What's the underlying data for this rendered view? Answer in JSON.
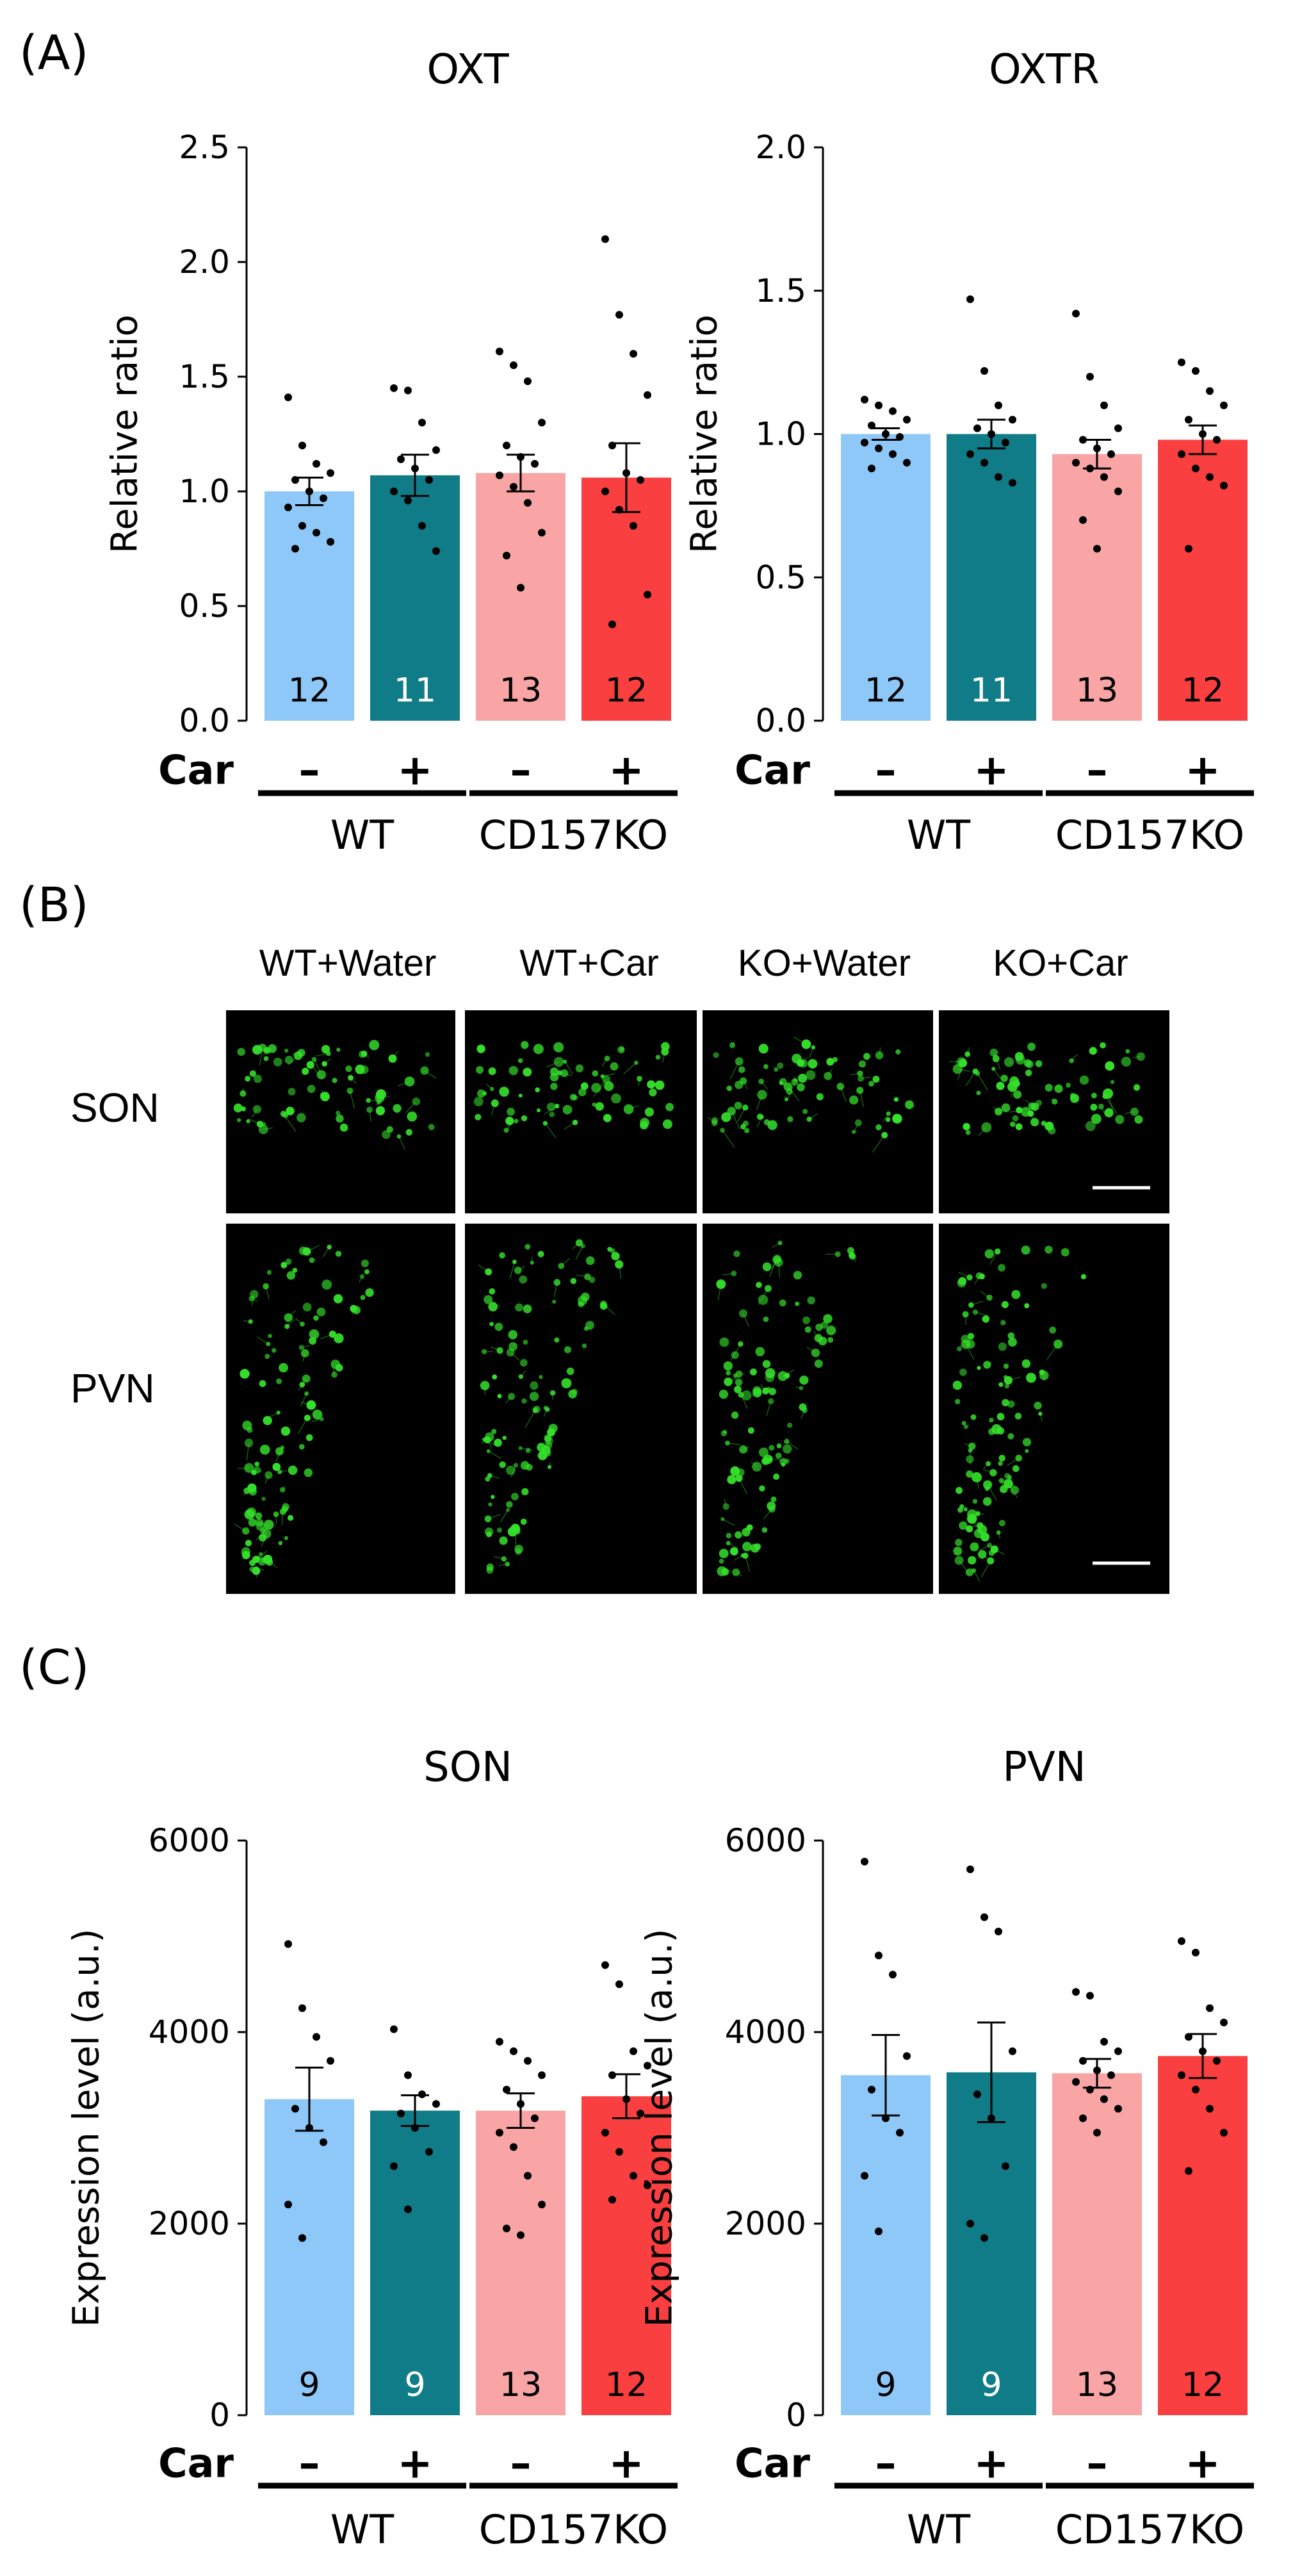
{
  "panels": {
    "a": {
      "label": "(A)"
    },
    "b": {
      "label": "(B)",
      "columns": [
        "WT+Water",
        "WT+Car",
        "KO+Water",
        "KO+Car"
      ],
      "rows": [
        "SON",
        "PVN"
      ]
    },
    "c": {
      "label": "(C)"
    }
  },
  "colors": {
    "wt_water": "#8EC8F8",
    "wt_car": "#0F7C88",
    "ko_water": "#F9A5A5",
    "ko_car": "#F93F3F",
    "micrograph_background": "#000000",
    "neuron_fluorescence": "#35E12B"
  },
  "chart_data": [
    {
      "type": "bar",
      "title": "OXT",
      "ylabel": "Relative ratio",
      "ylim": [
        0,
        2.5
      ],
      "yticks": [
        "0.0",
        "0.5",
        "1.0",
        "1.5",
        "2.0",
        "2.5"
      ],
      "treatment_label": "Car",
      "treatment_signs": [
        "–",
        "+",
        "–",
        "+"
      ],
      "groups": [
        "WT",
        "CD157KO"
      ],
      "categories": [
        "WT Car –",
        "WT Car +",
        "CD157KO Car –",
        "CD157KO Car +"
      ],
      "values": [
        1.0,
        1.07,
        1.08,
        1.06
      ],
      "sem": [
        0.06,
        0.09,
        0.08,
        0.15
      ],
      "n": [
        "12",
        "11",
        "13",
        "12"
      ],
      "points": [
        [
          1.41,
          1.2,
          1.12,
          1.08,
          1.05,
          1.0,
          0.97,
          0.93,
          0.85,
          0.82,
          0.78,
          0.75
        ],
        [
          1.45,
          1.44,
          1.3,
          1.18,
          1.14,
          1.1,
          1.05,
          1.0,
          0.96,
          0.85,
          0.74
        ],
        [
          1.61,
          1.55,
          1.48,
          1.3,
          1.2,
          1.15,
          1.12,
          1.07,
          1.02,
          0.95,
          0.82,
          0.72,
          0.58
        ],
        [
          2.1,
          1.77,
          1.6,
          1.42,
          1.2,
          1.08,
          1.05,
          1.0,
          0.92,
          0.85,
          0.55,
          0.42
        ]
      ]
    },
    {
      "type": "bar",
      "title": "OXTR",
      "ylabel": "Relative ratio",
      "ylim": [
        0,
        2.0
      ],
      "yticks": [
        "0.0",
        "0.5",
        "1.0",
        "1.5",
        "2.0"
      ],
      "treatment_label": "Car",
      "treatment_signs": [
        "–",
        "+",
        "–",
        "+"
      ],
      "groups": [
        "WT",
        "CD157KO"
      ],
      "categories": [
        "WT Car –",
        "WT Car +",
        "CD157KO Car –",
        "CD157KO Car +"
      ],
      "values": [
        1.0,
        1.0,
        0.93,
        0.98
      ],
      "sem": [
        0.02,
        0.05,
        0.05,
        0.05
      ],
      "n": [
        "12",
        "11",
        "13",
        "12"
      ],
      "points": [
        [
          1.12,
          1.1,
          1.08,
          1.05,
          1.03,
          1.0,
          0.99,
          0.97,
          0.95,
          0.93,
          0.9,
          0.88
        ],
        [
          1.47,
          1.22,
          1.1,
          1.05,
          1.02,
          1.0,
          0.97,
          0.93,
          0.9,
          0.85,
          0.83
        ],
        [
          1.42,
          1.2,
          1.1,
          1.02,
          0.98,
          0.95,
          0.93,
          0.9,
          0.88,
          0.85,
          0.8,
          0.7,
          0.6
        ],
        [
          1.25,
          1.22,
          1.15,
          1.1,
          1.05,
          1.0,
          0.98,
          0.93,
          0.88,
          0.85,
          0.82,
          0.6
        ]
      ]
    },
    {
      "type": "bar",
      "title": "SON",
      "ylabel": "Expression level (a.u.)",
      "ylim": [
        0,
        6000
      ],
      "yticks": [
        "0",
        "2000",
        "4000",
        "6000"
      ],
      "treatment_label": "Car",
      "treatment_signs": [
        "–",
        "+",
        "–",
        "+"
      ],
      "groups": [
        "WT",
        "CD157KO"
      ],
      "categories": [
        "WT Car –",
        "WT Car +",
        "CD157KO Car –",
        "CD157KO Car +"
      ],
      "values": [
        3300,
        3180,
        3180,
        3330
      ],
      "sem": [
        330,
        160,
        180,
        230
      ],
      "n": [
        "9",
        "9",
        "13",
        "12"
      ],
      "points": [
        [
          4920,
          4250,
          3950,
          3700,
          3200,
          3000,
          2850,
          2200,
          1850
        ],
        [
          4030,
          3550,
          3350,
          3250,
          3150,
          3000,
          2750,
          2600,
          2150
        ],
        [
          3900,
          3800,
          3700,
          3550,
          3400,
          3250,
          3100,
          2950,
          2800,
          2500,
          2200,
          1950,
          1880
        ],
        [
          4700,
          4500,
          3800,
          3650,
          3550,
          3300,
          3150,
          2950,
          2750,
          2500,
          2400,
          2250
        ]
      ]
    },
    {
      "type": "bar",
      "title": "PVN",
      "ylabel": "Expression level (a.u.)",
      "ylim": [
        0,
        6000
      ],
      "yticks": [
        "0",
        "2000",
        "4000",
        "6000"
      ],
      "treatment_label": "Car",
      "treatment_signs": [
        "–",
        "+",
        "–",
        "+"
      ],
      "groups": [
        "WT",
        "CD157KO"
      ],
      "categories": [
        "WT Car –",
        "WT Car +",
        "CD157KO Car –",
        "CD157KO Car +"
      ],
      "values": [
        3550,
        3580,
        3570,
        3750
      ],
      "sem": [
        420,
        520,
        150,
        230
      ],
      "n": [
        "9",
        "9",
        "13",
        "12"
      ],
      "points": [
        [
          5780,
          4800,
          4600,
          3750,
          3400,
          3100,
          2950,
          2500,
          1920
        ],
        [
          5700,
          5200,
          5050,
          3800,
          3350,
          3100,
          2600,
          2000,
          1850
        ],
        [
          4420,
          4380,
          3900,
          3800,
          3700,
          3600,
          3550,
          3480,
          3400,
          3300,
          3200,
          3100,
          2950
        ],
        [
          4950,
          4830,
          4250,
          4100,
          3950,
          3800,
          3700,
          3550,
          3400,
          3200,
          2950,
          2550
        ]
      ]
    }
  ]
}
